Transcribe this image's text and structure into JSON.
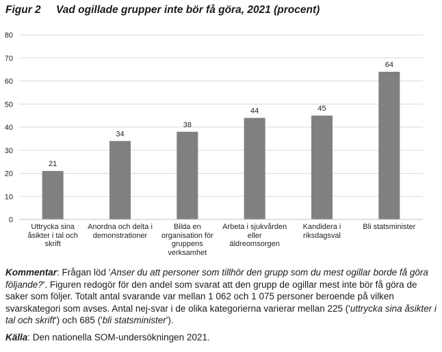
{
  "figure": {
    "number": "Figur 2",
    "title": "Vad ogillade grupper inte bör få göra, 2021 (procent)"
  },
  "chart_data": {
    "type": "bar",
    "categories": [
      "Uttrycka sina åsikter i tal och skrift",
      "Anordna och delta i demonstrationer",
      "Bilda en organisation för gruppens verksamhet",
      "Arbeta i sjukvården eller äldreomsorgen",
      "Kandidera i riksdagsval",
      "Bli statsminister"
    ],
    "category_lines": [
      [
        "Uttrycka sina",
        "åsikter i tal och",
        "skrift"
      ],
      [
        "Anordna och delta i",
        "demonstrationer"
      ],
      [
        "Bilda en",
        "organisation för",
        "gruppens",
        "verksamhet"
      ],
      [
        "Arbeta i sjukvården",
        "eller",
        "äldreomsorgen"
      ],
      [
        "Kandidera i",
        "riksdagsval"
      ],
      [
        "Bli statsminister"
      ]
    ],
    "values": [
      21,
      34,
      38,
      44,
      45,
      64
    ],
    "ylim": [
      0,
      80
    ],
    "yticks": [
      0,
      10,
      20,
      30,
      40,
      50,
      60,
      70,
      80
    ],
    "grid": true,
    "bar_color": "#808080",
    "grid_color": "#d9d9d9"
  },
  "comment": {
    "lead": "Kommentar",
    "p1": ": Frågan löd '",
    "question": "Anser du att personer som tillhör den grupp som du mest ogillar borde få göra följande?",
    "p2": "'. Figuren redogör för den andel som svarat att den grupp de ogillar mest inte bör få göra de saker som följer. Totalt antal svarande var mellan 1 062 och 1 075 personer beroende på vilken svarskategori som avses. Antal nej-svar i de olika kategorierna varierar mellan 225 ('",
    "q1": "uttrycka sina åsikter i tal och skrift",
    "p3": "') och 685 ('",
    "q2": "bli statsminister",
    "p4": "')."
  },
  "source": {
    "lead": "Källa",
    "text": ": Den nationella SOM-undersökningen 2021."
  }
}
